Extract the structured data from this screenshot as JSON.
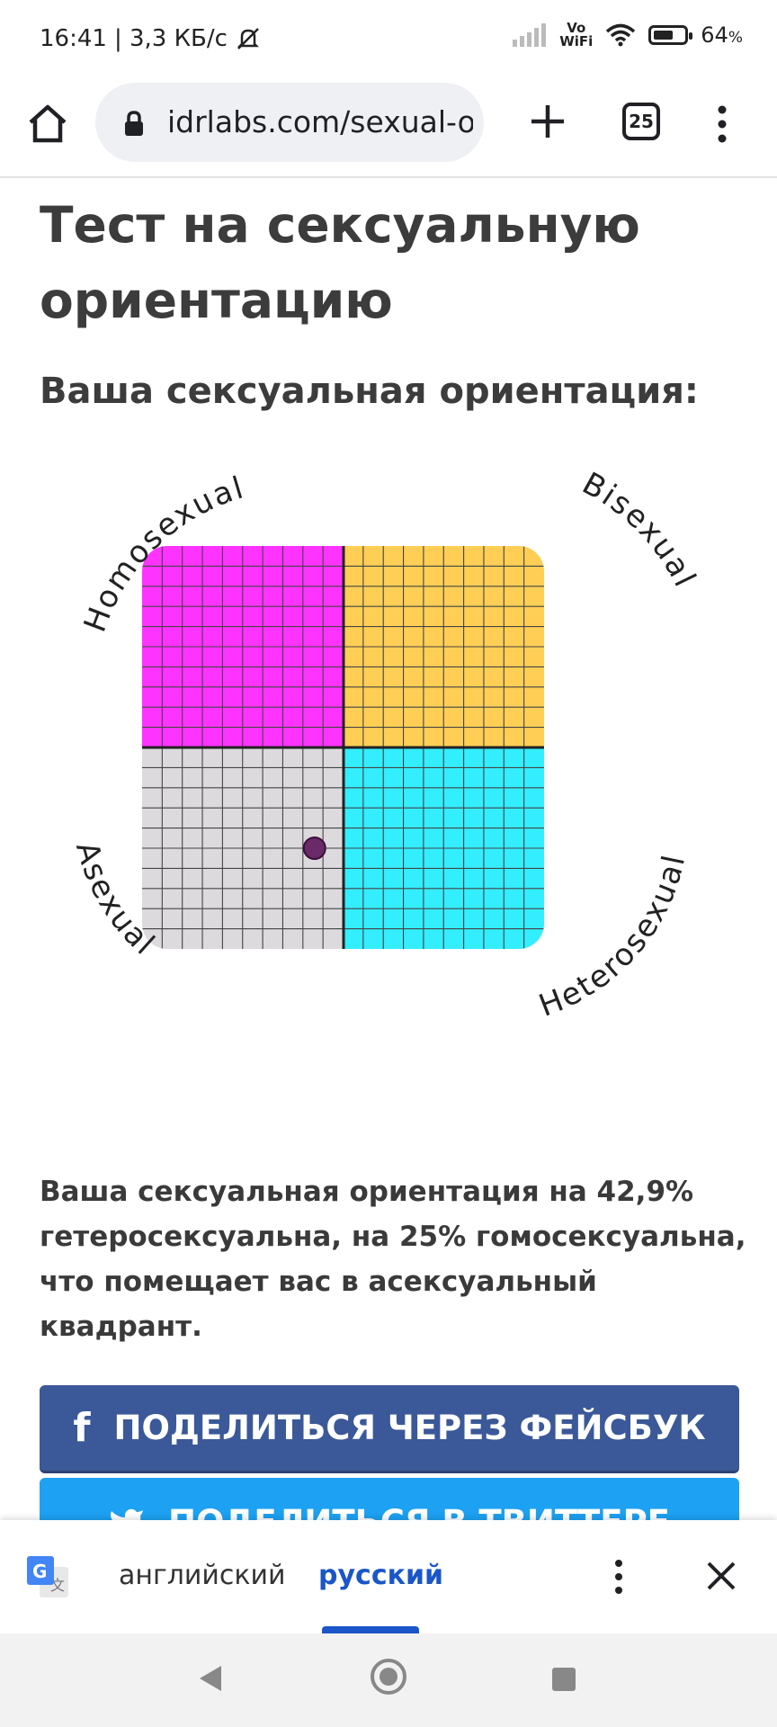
{
  "status_bar": {
    "time": "16:41",
    "speed": "| 3,3 КБ/с",
    "vowifi_top": "Vo",
    "vowifi_bottom": "WiFi",
    "battery_percent": "64",
    "battery_unit": "%",
    "battery_level": 0.64
  },
  "browser": {
    "url": "idrlabs.com/sexual-orientation-test/result",
    "tab_count": "25"
  },
  "page": {
    "title": "Тест на сексуальную ориентацию",
    "subtitle": "Ваша сексуальная ориентация:",
    "result_text": "Ваша сексуальная ориентация на 42,9% гетеросексуальна, на 25% гомосексуальна, что помещает вас в асексуальный квадрант."
  },
  "chart_data": {
    "type": "scatter",
    "quadrant_labels": {
      "top_left": "Homosexual",
      "top_right": "Bisexual",
      "bottom_left": "Asexual",
      "bottom_right": "Heterosexual"
    },
    "quadrant_colors": {
      "top_left": "#ff33ff",
      "top_right": "#ffcf55",
      "bottom_left": "#dcdadc",
      "bottom_right": "#33eeff"
    },
    "grid": true,
    "grid_cells_per_axis": 20,
    "xlim": [
      0,
      100
    ],
    "ylim": [
      0,
      100
    ],
    "points": [
      {
        "x": 42.9,
        "y": 25,
        "color": "#6a2a6a"
      }
    ]
  },
  "share": {
    "facebook_label": "ПОДЕЛИТЬСЯ ЧЕРЕЗ ФЕЙСБУК",
    "twitter_label": "ПОДЕЛИТЬСЯ В ТВИТТЕРЕ"
  },
  "translate_bar": {
    "source_lang": "английский",
    "target_lang": "русский"
  }
}
